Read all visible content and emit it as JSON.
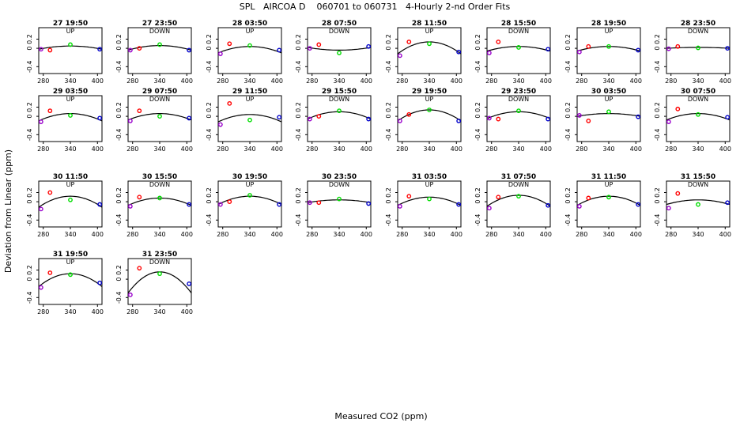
{
  "title": "SPL   AIRCOA D    060701 to 060731   4-Hourly 2-nd Order Fits",
  "xlabel": "Measured CO2 (ppm)",
  "ylabel": "Deviation from Linear (ppm)",
  "colors": {
    "low": "#9900cc",
    "mid_low": "#ff0000",
    "mid": "#00dd00",
    "high": "#0000cc",
    "curve": "#000000"
  },
  "chart_data": {
    "type": "scatter",
    "grid": false,
    "xlim": [
      270,
      410
    ],
    "ylim": [
      -0.55,
      0.45
    ],
    "x_ticks": [
      280,
      340,
      400
    ],
    "y_ticks": [
      -0.4,
      0,
      0.2
    ],
    "y_tick_labels": [
      "-0.4",
      "0",
      "0.2"
    ],
    "x_tick_labels": [
      "280",
      "340",
      "400"
    ],
    "panels": [
      {
        "title": "27 19:50",
        "dir": "UP",
        "points": [
          [
            275,
            -0.02
          ],
          [
            295,
            -0.04
          ],
          [
            340,
            0.08
          ],
          [
            405,
            -0.02
          ]
        ],
        "coef": [
          -0.02,
          0.07
        ]
      },
      {
        "title": "27 23:50",
        "dir": "DOWN",
        "points": [
          [
            275,
            -0.04
          ],
          [
            295,
            0.0
          ],
          [
            340,
            0.08
          ],
          [
            405,
            -0.04
          ]
        ],
        "coef": [
          -0.04,
          0.1
        ]
      },
      {
        "title": "28 03:50",
        "dir": "UP",
        "points": [
          [
            275,
            -0.12
          ],
          [
            295,
            0.1
          ],
          [
            340,
            0.06
          ],
          [
            405,
            -0.04
          ]
        ],
        "coef": [
          -0.1,
          0.14
        ]
      },
      {
        "title": "28 07:50",
        "dir": "DOWN",
        "points": [
          [
            275,
            0.0
          ],
          [
            295,
            0.08
          ],
          [
            340,
            -0.1
          ],
          [
            405,
            0.04
          ]
        ],
        "coef": [
          0.02,
          -0.06
        ]
      },
      {
        "title": "28 11:50",
        "dir": "UP",
        "points": [
          [
            275,
            -0.16
          ],
          [
            295,
            0.14
          ],
          [
            340,
            0.1
          ],
          [
            405,
            -0.08
          ]
        ],
        "coef": [
          -0.12,
          0.26
        ]
      },
      {
        "title": "28 15:50",
        "dir": "DOWN",
        "points": [
          [
            275,
            -0.1
          ],
          [
            295,
            0.14
          ],
          [
            340,
            0.02
          ],
          [
            405,
            -0.02
          ]
        ],
        "coef": [
          -0.06,
          0.1
        ]
      },
      {
        "title": "28 19:50",
        "dir": "UP",
        "points": [
          [
            275,
            -0.08
          ],
          [
            295,
            0.04
          ],
          [
            340,
            0.04
          ],
          [
            405,
            -0.04
          ]
        ],
        "coef": [
          -0.06,
          0.1
        ]
      },
      {
        "title": "28 23:50",
        "dir": "DOWN",
        "points": [
          [
            275,
            -0.01
          ],
          [
            295,
            0.04
          ],
          [
            340,
            0.01
          ],
          [
            405,
            0.0
          ]
        ],
        "coef": [
          0.0,
          0.02
        ]
      },
      {
        "title": "29 03:50",
        "dir": "UP",
        "points": [
          [
            275,
            -0.12
          ],
          [
            295,
            0.12
          ],
          [
            340,
            0.02
          ],
          [
            405,
            -0.04
          ]
        ],
        "coef": [
          -0.1,
          0.16
        ]
      },
      {
        "title": "29 07:50",
        "dir": "DOWN",
        "points": [
          [
            275,
            -0.1
          ],
          [
            295,
            0.12
          ],
          [
            340,
            0.0
          ],
          [
            405,
            -0.04
          ]
        ],
        "coef": [
          -0.08,
          0.14
        ]
      },
      {
        "title": "29 11:50",
        "dir": "UP",
        "points": [
          [
            275,
            -0.18
          ],
          [
            295,
            0.28
          ],
          [
            340,
            -0.08
          ],
          [
            405,
            -0.02
          ]
        ],
        "coef": [
          -0.12,
          0.16
        ]
      },
      {
        "title": "29 15:50",
        "dir": "DOWN",
        "points": [
          [
            275,
            -0.06
          ],
          [
            295,
            0.0
          ],
          [
            340,
            0.12
          ],
          [
            405,
            -0.06
          ]
        ],
        "coef": [
          -0.06,
          0.16
        ]
      },
      {
        "title": "29 19:50",
        "dir": "UP",
        "points": [
          [
            275,
            -0.1
          ],
          [
            295,
            0.04
          ],
          [
            340,
            0.14
          ],
          [
            405,
            -0.1
          ]
        ],
        "coef": [
          -0.1,
          0.24
        ]
      },
      {
        "title": "29 23:50",
        "dir": "DOWN",
        "points": [
          [
            275,
            -0.04
          ],
          [
            295,
            -0.06
          ],
          [
            340,
            0.12
          ],
          [
            405,
            -0.06
          ]
        ],
        "coef": [
          -0.05,
          0.15
        ]
      },
      {
        "title": "30 03:50",
        "dir": "UP",
        "points": [
          [
            275,
            0.02
          ],
          [
            295,
            -0.1
          ],
          [
            340,
            0.1
          ],
          [
            405,
            -0.01
          ]
        ],
        "coef": [
          0.0,
          0.06
        ]
      },
      {
        "title": "30 07:50",
        "dir": "DOWN",
        "points": [
          [
            275,
            -0.12
          ],
          [
            295,
            0.16
          ],
          [
            340,
            0.04
          ],
          [
            405,
            -0.02
          ]
        ],
        "coef": [
          -0.08,
          0.14
        ]
      },
      {
        "title": "30 11:50",
        "dir": "UP",
        "points": [
          [
            275,
            -0.16
          ],
          [
            295,
            0.2
          ],
          [
            340,
            0.04
          ],
          [
            405,
            -0.06
          ]
        ],
        "coef": [
          -0.12,
          0.24
        ]
      },
      {
        "title": "30 15:50",
        "dir": "DOWN",
        "points": [
          [
            275,
            -0.1
          ],
          [
            295,
            0.1
          ],
          [
            340,
            0.08
          ],
          [
            405,
            -0.06
          ]
        ],
        "coef": [
          -0.08,
          0.16
        ]
      },
      {
        "title": "30 19:50",
        "dir": "UP",
        "points": [
          [
            275,
            -0.06
          ],
          [
            295,
            0.0
          ],
          [
            340,
            0.14
          ],
          [
            405,
            -0.06
          ]
        ],
        "coef": [
          -0.06,
          0.18
        ]
      },
      {
        "title": "30 23:50",
        "dir": "DOWN",
        "points": [
          [
            275,
            -0.02
          ],
          [
            295,
            -0.02
          ],
          [
            340,
            0.06
          ],
          [
            405,
            -0.04
          ]
        ],
        "coef": [
          -0.02,
          0.06
        ]
      },
      {
        "title": "31 03:50",
        "dir": "UP",
        "points": [
          [
            275,
            -0.1
          ],
          [
            295,
            0.12
          ],
          [
            340,
            0.06
          ],
          [
            405,
            -0.06
          ]
        ],
        "coef": [
          -0.08,
          0.18
        ]
      },
      {
        "title": "31 07:50",
        "dir": "DOWN",
        "points": [
          [
            275,
            -0.14
          ],
          [
            295,
            0.1
          ],
          [
            340,
            0.12
          ],
          [
            405,
            -0.08
          ]
        ],
        "coef": [
          -0.1,
          0.24
        ]
      },
      {
        "title": "31 11:50",
        "dir": "UP",
        "points": [
          [
            275,
            -0.1
          ],
          [
            295,
            0.08
          ],
          [
            340,
            0.1
          ],
          [
            405,
            -0.06
          ]
        ],
        "coef": [
          -0.08,
          0.2
        ]
      },
      {
        "title": "31 15:50",
        "dir": "DOWN",
        "points": [
          [
            275,
            -0.14
          ],
          [
            295,
            0.18
          ],
          [
            340,
            -0.06
          ],
          [
            405,
            -0.02
          ]
        ],
        "coef": [
          -0.06,
          0.1
        ]
      },
      {
        "title": "31 19:50",
        "dir": "UP",
        "points": [
          [
            275,
            -0.18
          ],
          [
            295,
            0.14
          ],
          [
            340,
            0.1
          ],
          [
            405,
            -0.08
          ]
        ],
        "coef": [
          -0.16,
          0.28
        ]
      },
      {
        "title": "31 23:50",
        "dir": "DOWN",
        "points": [
          [
            275,
            -0.34
          ],
          [
            295,
            0.24
          ],
          [
            340,
            0.12
          ],
          [
            405,
            -0.1
          ]
        ],
        "coef": [
          -0.3,
          0.46
        ]
      }
    ]
  }
}
